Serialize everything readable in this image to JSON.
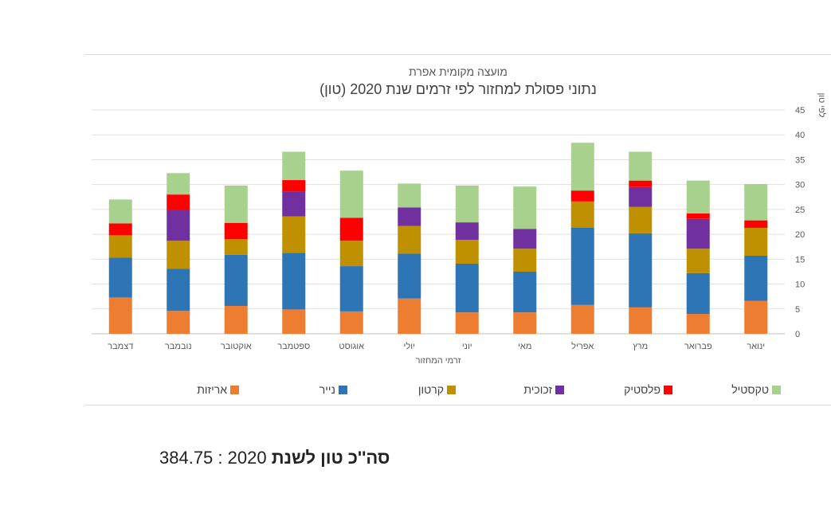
{
  "chart_data": {
    "type": "bar",
    "stacked": true,
    "title": "מועצה מקומית אפרת",
    "subtitle": "נתוני פסולת למחזור לפי זרמים שנת 2020 (טון)",
    "xlabel": "זרמי המחזור",
    "ylabel": "לפי טון",
    "ylim": [
      0,
      45
    ],
    "yticks": [
      0,
      5,
      10,
      15,
      20,
      25,
      30,
      35,
      40,
      45
    ],
    "grid": true,
    "legend_position": "bottom",
    "categories": [
      "ינואר",
      "פברואר",
      "מרץ",
      "אפריל",
      "מאי",
      "יוני",
      "יולי",
      "אוגוסט",
      "ספטמבר",
      "אוקטובר",
      "נובמבר",
      "דצמבר"
    ],
    "series": [
      {
        "name": "אריזות",
        "color": "#ed7d31",
        "values": [
          6.6,
          4.0,
          5.3,
          5.8,
          4.3,
          4.3,
          7.1,
          4.5,
          4.9,
          5.6,
          4.6,
          7.3
        ]
      },
      {
        "name": "נייר",
        "color": "#2e75b6",
        "values": [
          9.1,
          8.2,
          14.9,
          15.5,
          8.2,
          9.8,
          9.0,
          9.1,
          11.4,
          10.3,
          8.5,
          8.0
        ]
      },
      {
        "name": "קרטון",
        "color": "#bf9000",
        "values": [
          5.6,
          4.9,
          5.3,
          5.3,
          4.6,
          4.8,
          5.6,
          5.1,
          7.3,
          3.1,
          5.6,
          4.5
        ]
      },
      {
        "name": "זכוכית",
        "color": "#7030a0",
        "values": [
          0.0,
          6.0,
          4.0,
          0.0,
          4.0,
          3.5,
          3.7,
          0.0,
          5.0,
          0.0,
          6.2,
          0.0
        ]
      },
      {
        "name": "פלסטיק",
        "color": "#ff0000",
        "values": [
          1.5,
          1.1,
          1.3,
          2.2,
          0.0,
          0.0,
          0.0,
          4.6,
          2.3,
          3.3,
          3.1,
          2.4
        ]
      },
      {
        "name": "טקסטיל",
        "color": "#a9d18e",
        "values": [
          7.3,
          6.6,
          5.8,
          9.6,
          8.5,
          7.4,
          4.8,
          9.5,
          5.7,
          7.5,
          4.3,
          4.8
        ]
      }
    ]
  },
  "summary": {
    "label": "סה''כ טון לשנת",
    "value": "2020 : 384.75"
  }
}
